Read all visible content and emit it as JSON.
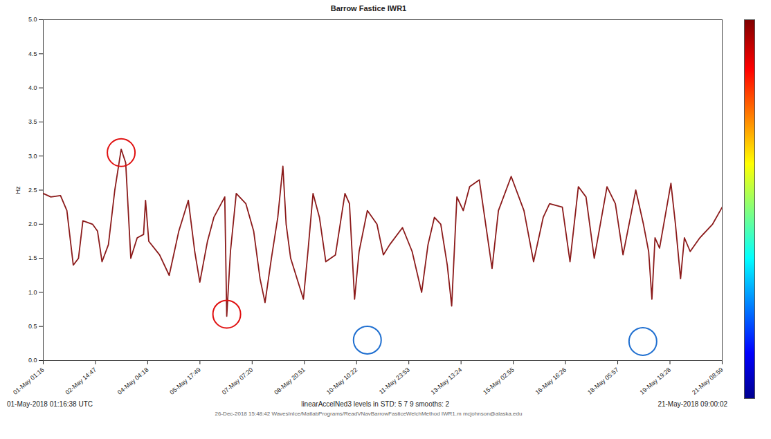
{
  "chart_data": {
    "type": "line",
    "title": "Barrow Fastice IWR1",
    "ylabel": "Hz",
    "start_label": "01-May-2018 01:16:38 UTC",
    "caption": "linearAccelNed3 levels in STD: 5 7 9 smooths: 2",
    "end_label": "21-May-2018 09:00:02",
    "footer": "26-Dec-2018 15:48:42 WavesInIce/MatlabPrograms/ReadVNavBarrowFasticeWelchMethod IWR1.m mcjohnson@alaska.edu",
    "color": "#8b1a1a",
    "xlim": [
      "2018-05-01T01:16:38Z",
      "2018-05-21T09:00:02Z"
    ],
    "xticks": [
      {
        "value": "2018-05-01T01:16:00Z",
        "label": "01-May 01:16"
      },
      {
        "value": "2018-05-02T14:47:00Z",
        "label": "02-May 14:47"
      },
      {
        "value": "2018-05-04T04:18:00Z",
        "label": "04-May 04:18"
      },
      {
        "value": "2018-05-05T17:49:00Z",
        "label": "05-May 17:49"
      },
      {
        "value": "2018-05-07T07:20:00Z",
        "label": "07-May 07:20"
      },
      {
        "value": "2018-05-08T20:51:00Z",
        "label": "08-May 20:51"
      },
      {
        "value": "2018-05-10T10:22:00Z",
        "label": "10-May 10:22"
      },
      {
        "value": "2018-05-11T23:53:00Z",
        "label": "11-May 23:53"
      },
      {
        "value": "2018-05-13T13:24:00Z",
        "label": "13-May 13:24"
      },
      {
        "value": "2018-05-15T02:55:00Z",
        "label": "15-May 02:55"
      },
      {
        "value": "2018-05-16T16:26:00Z",
        "label": "16-May 16:26"
      },
      {
        "value": "2018-05-18T05:57:00Z",
        "label": "18-May 05:57"
      },
      {
        "value": "2018-05-19T19:28:00Z",
        "label": "19-May 19:28"
      },
      {
        "value": "2018-05-21T08:59:00Z",
        "label": "21-May 08:59"
      }
    ],
    "ylim": [
      0,
      5
    ],
    "yticks": [
      0,
      0.5,
      1,
      1.5,
      2,
      2.5,
      3,
      3.5,
      4,
      4.5,
      5
    ],
    "x": [
      "2018-05-01T01:17Z",
      "2018-05-01T06:45Z",
      "2018-05-01T13:40Z",
      "2018-05-01T18:15Z",
      "2018-05-01T22:50Z",
      "2018-05-02T02:35Z",
      "2018-05-02T05:45Z",
      "2018-05-02T12:40Z",
      "2018-05-02T16:15Z",
      "2018-05-02T19:30Z",
      "2018-05-03T00:05Z",
      "2018-05-03T04:40Z",
      "2018-05-03T09:15Z",
      "2018-05-03T12:30Z",
      "2018-05-03T16:10Z",
      "2018-05-03T20:45Z",
      "2018-05-04T01:20Z",
      "2018-05-04T02:45Z",
      "2018-05-04T05:05Z",
      "2018-05-04T12:50Z",
      "2018-05-04T19:45Z",
      "2018-05-05T02:40Z",
      "2018-05-05T09:30Z",
      "2018-05-05T14:05Z",
      "2018-05-05T17:45Z",
      "2018-05-05T23:15Z",
      "2018-05-06T03:50Z",
      "2018-05-06T11:40Z",
      "2018-05-06T13:05Z",
      "2018-05-06T15:45Z",
      "2018-05-06T19:55Z",
      "2018-05-07T02:50Z",
      "2018-05-07T08:25Z",
      "2018-05-07T13:00Z",
      "2018-05-07T16:35Z",
      "2018-05-07T21:10Z",
      "2018-05-08T01:45Z",
      "2018-05-08T05:25Z",
      "2018-05-08T07:45Z",
      "2018-05-08T11:00Z",
      "2018-05-08T20:10Z",
      "2018-05-08T23:25Z",
      "2018-05-09T03:05Z",
      "2018-05-09T07:40Z",
      "2018-05-09T12:15Z",
      "2018-05-09T19:10Z",
      "2018-05-10T02:00Z",
      "2018-05-10T05:15Z",
      "2018-05-10T08:55Z",
      "2018-05-10T12:10Z",
      "2018-05-10T18:05Z",
      "2018-05-11T01:00Z",
      "2018-05-11T05:35Z",
      "2018-05-11T10:10Z",
      "2018-05-11T19:20Z",
      "2018-05-12T02:15Z",
      "2018-05-12T09:05Z",
      "2018-05-12T13:40Z",
      "2018-05-12T18:15Z",
      "2018-05-12T22:50Z",
      "2018-05-13T03:30Z",
      "2018-05-13T06:40Z",
      "2018-05-13T10:25Z",
      "2018-05-13T15:00Z",
      "2018-05-13T19:35Z",
      "2018-05-14T02:30Z",
      "2018-05-14T07:05Z",
      "2018-05-14T11:40Z",
      "2018-05-14T16:15Z",
      "2018-05-15T01:25Z",
      "2018-05-15T10:35Z",
      "2018-05-15T17:30Z",
      "2018-05-16T00:25Z",
      "2018-05-16T05:00Z",
      "2018-05-16T14:10Z",
      "2018-05-16T19:40Z",
      "2018-05-17T01:40Z",
      "2018-05-17T07:10Z",
      "2018-05-17T13:05Z",
      "2018-05-17T22:15Z",
      "2018-05-18T04:15Z",
      "2018-05-18T09:45Z",
      "2018-05-18T18:55Z",
      "2018-05-19T00:25Z",
      "2018-05-19T04:10Z",
      "2018-05-19T06:30Z",
      "2018-05-19T08:45Z",
      "2018-05-19T12:00Z",
      "2018-05-19T20:10Z",
      "2018-05-19T23:25Z",
      "2018-05-20T03:05Z",
      "2018-05-20T05:50Z",
      "2018-05-20T10:00Z",
      "2018-05-20T16:55Z",
      "2018-05-21T02:05Z",
      "2018-05-21T09:00Z"
    ],
    "values": [
      2.45,
      2.4,
      2.42,
      2.2,
      1.4,
      1.5,
      2.05,
      2.0,
      1.9,
      1.45,
      1.7,
      2.5,
      3.1,
      2.9,
      1.5,
      1.8,
      1.85,
      2.35,
      1.75,
      1.55,
      1.25,
      1.9,
      2.35,
      1.6,
      1.15,
      1.75,
      2.1,
      2.4,
      0.65,
      1.6,
      2.45,
      2.3,
      1.9,
      1.2,
      0.85,
      1.5,
      2.1,
      2.85,
      2.0,
      1.5,
      0.9,
      1.6,
      2.45,
      2.1,
      1.45,
      1.55,
      2.45,
      2.3,
      0.9,
      1.6,
      2.2,
      2.0,
      1.55,
      1.7,
      1.95,
      1.6,
      1.0,
      1.7,
      2.1,
      2.0,
      1.4,
      0.8,
      2.4,
      2.2,
      2.55,
      2.65,
      2.0,
      1.35,
      2.2,
      2.7,
      2.2,
      1.45,
      2.1,
      2.3,
      2.25,
      1.45,
      2.55,
      2.4,
      1.5,
      2.55,
      2.3,
      1.55,
      2.5,
      2.0,
      1.6,
      0.9,
      1.8,
      1.65,
      2.6,
      2.0,
      1.2,
      1.8,
      1.6,
      1.8,
      2.0,
      2.25
    ],
    "annotations": [
      {
        "x": "2018-05-03T09:15Z",
        "y": 3.05,
        "color": "#e01010"
      },
      {
        "x": "2018-05-06T13:05Z",
        "y": 0.68,
        "color": "#e01010"
      },
      {
        "x": "2018-05-10T18:05Z",
        "y": 0.3,
        "color": "#1f6fd0"
      },
      {
        "x": "2018-05-19T00:00Z",
        "y": 0.28,
        "color": "#1f6fd0"
      }
    ]
  }
}
